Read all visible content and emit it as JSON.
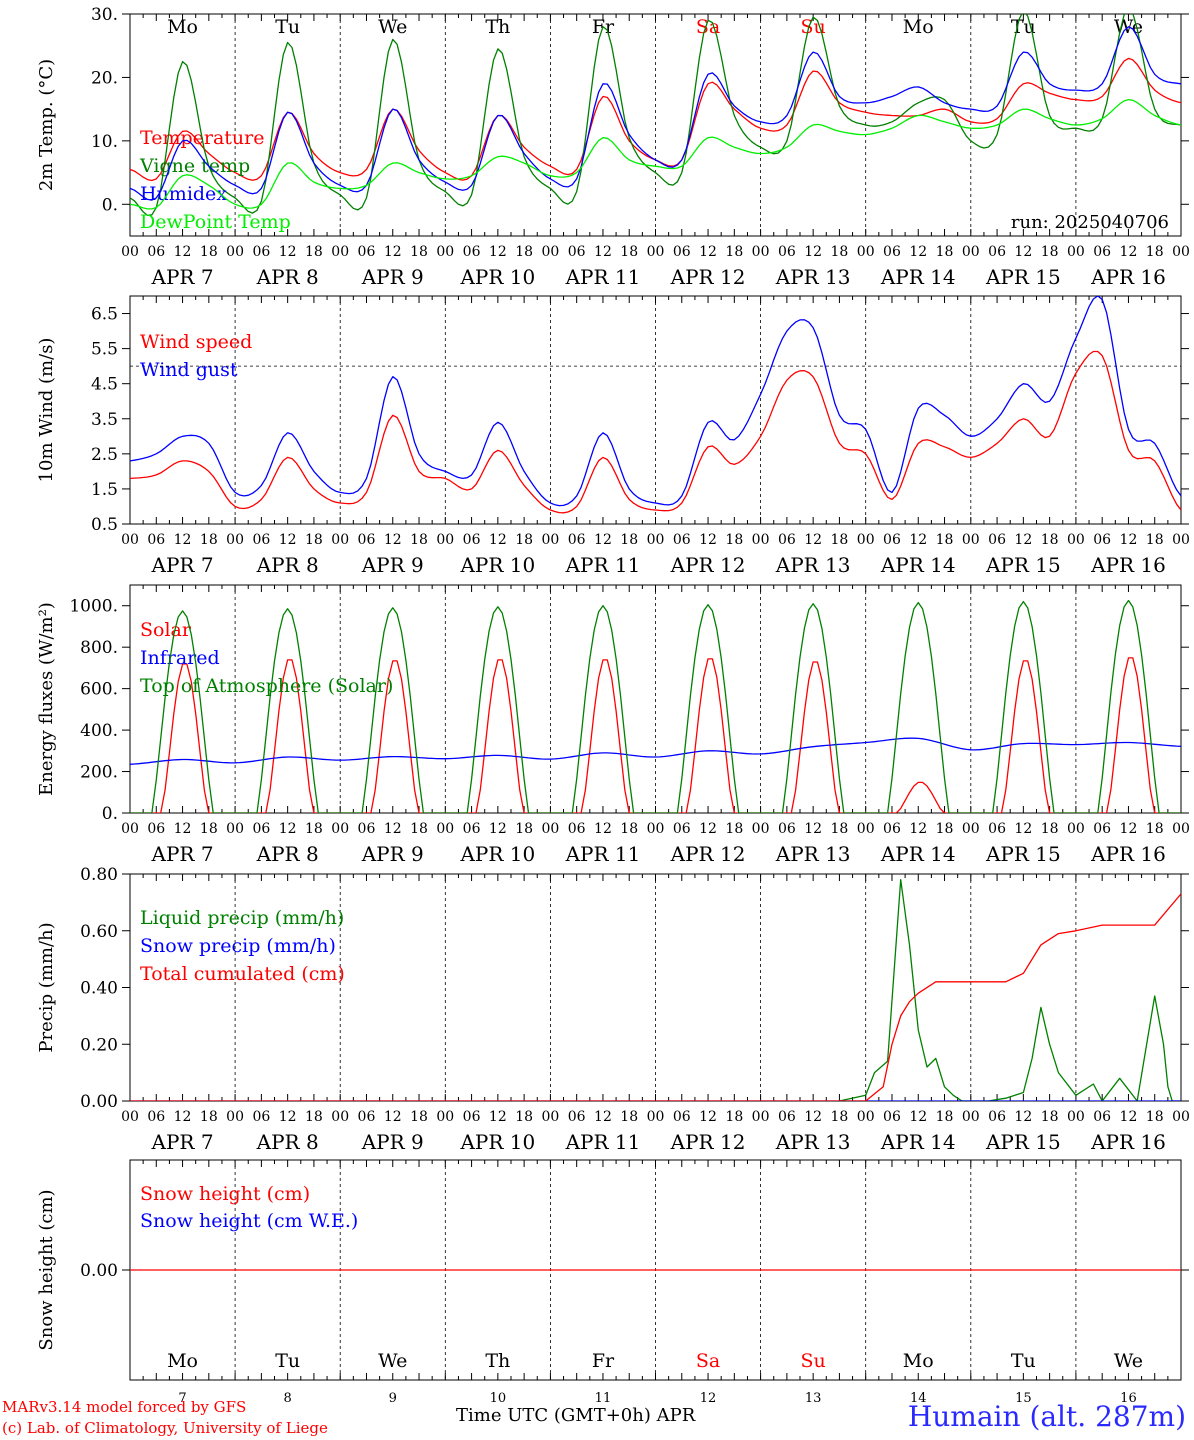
{
  "colors": {
    "red": "#ff0000",
    "blue": "#0000ff",
    "dark_green": "#008000",
    "light_green": "#00ee00",
    "axis": "#000000"
  },
  "footer": {
    "credit_line1": "MARv3.14 model forced by GFS",
    "credit_line2": "(c) Lab. of Climatology, University of Liege",
    "x_axis_title": "Time UTC (GMT+0h) APR",
    "location": "Humain (alt. 287m)"
  },
  "days": {
    "labels": [
      "APR  7",
      "APR  8",
      "APR  9",
      "APR 10",
      "APR 11",
      "APR 12",
      "APR 13",
      "APR 14",
      "APR 15",
      "APR 16"
    ],
    "weekdays": [
      {
        "name": "Mo",
        "color": "#000000"
      },
      {
        "name": "Tu",
        "color": "#000000"
      },
      {
        "name": "We",
        "color": "#000000"
      },
      {
        "name": "Th",
        "color": "#000000"
      },
      {
        "name": "Fr",
        "color": "#000000"
      },
      {
        "name": "Sa",
        "color": "#ff0000"
      },
      {
        "name": "Su",
        "color": "#ff0000"
      },
      {
        "name": "Mo",
        "color": "#000000"
      },
      {
        "name": "Tu",
        "color": "#000000"
      },
      {
        "name": "We",
        "color": "#000000"
      }
    ],
    "day_numbers": [
      "7",
      "8",
      "9",
      "10",
      "11",
      "12",
      "13",
      "14",
      "15",
      "16"
    ],
    "hour_ticks": [
      "00",
      "06",
      "12",
      "18"
    ],
    "final_tick": "00"
  },
  "chart_data": [
    {
      "type": "line",
      "ylabel": "2m Temp. (°C)",
      "ylim": [
        -5,
        30
      ],
      "yticks": [
        "0.",
        "10.",
        "20.",
        "30."
      ],
      "ytick_values": [
        0,
        10,
        20,
        30
      ],
      "annotation": "run: 2025040706",
      "show_weekdays": true,
      "x": [
        0,
        6,
        12,
        18,
        24,
        30,
        36,
        42,
        48,
        54,
        60,
        66,
        72,
        78,
        84,
        90,
        96,
        102,
        108,
        114,
        120,
        126,
        132,
        138,
        144,
        150,
        156,
        162,
        168,
        174,
        180,
        186,
        192,
        198,
        204,
        210,
        216,
        222,
        228,
        234,
        240
      ],
      "series": [
        {
          "name": "Temperature",
          "color": "#ff0000",
          "values": [
            5.5,
            4.0,
            11.5,
            8.0,
            5.0,
            4.5,
            14.5,
            8.0,
            5.0,
            5.5,
            15.0,
            8.5,
            5.0,
            4.5,
            14.0,
            9.0,
            6.0,
            5.5,
            17.0,
            10.0,
            7.0,
            7.0,
            19.0,
            15.0,
            12.0,
            12.5,
            21.0,
            16.0,
            14.5,
            14.0,
            14.0,
            15.0,
            13.0,
            13.5,
            19.0,
            17.5,
            16.5,
            17.0,
            23.0,
            18.0,
            16.0
          ]
        },
        {
          "name": "Vigne temp",
          "color": "#008000",
          "values": [
            1.0,
            -0.5,
            22.5,
            6.0,
            1.0,
            0.5,
            25.5,
            6.5,
            1.5,
            1.0,
            26.0,
            7.0,
            2.0,
            1.5,
            24.5,
            7.5,
            2.5,
            2.0,
            28.0,
            10.5,
            5.0,
            5.0,
            29.0,
            14.0,
            9.0,
            10.0,
            29.5,
            15.5,
            12.5,
            13.0,
            16.0,
            16.5,
            10.0,
            11.0,
            30.5,
            14.0,
            12.0,
            13.5,
            31.0,
            15.0,
            12.5
          ]
        },
        {
          "name": "Humidex",
          "color": "#0000ff",
          "values": [
            2.5,
            1.0,
            10.0,
            6.0,
            3.0,
            2.5,
            14.5,
            6.5,
            3.0,
            3.0,
            15.0,
            7.0,
            3.5,
            3.0,
            14.0,
            8.0,
            4.0,
            4.0,
            19.0,
            11.0,
            7.0,
            7.0,
            20.5,
            15.5,
            13.0,
            14.0,
            24.0,
            17.0,
            16.0,
            17.0,
            18.5,
            16.0,
            15.0,
            15.5,
            24.0,
            19.0,
            18.0,
            19.0,
            28.0,
            20.5,
            19.0
          ]
        },
        {
          "name": "DewPoint Temp",
          "color": "#00ee00",
          "values": [
            0.0,
            -0.5,
            4.5,
            3.0,
            0.0,
            0.0,
            6.5,
            3.5,
            2.5,
            3.0,
            6.5,
            5.0,
            4.0,
            4.5,
            7.5,
            6.5,
            4.5,
            5.0,
            10.5,
            7.0,
            6.0,
            6.0,
            10.5,
            9.0,
            8.0,
            9.0,
            12.5,
            11.5,
            11.0,
            12.0,
            14.0,
            13.0,
            12.0,
            12.5,
            15.0,
            13.5,
            12.5,
            13.5,
            16.5,
            14.0,
            12.5
          ]
        }
      ]
    },
    {
      "type": "line",
      "ylabel": "10m Wind (m/s)",
      "ylim": [
        0.5,
        7.0
      ],
      "yticks": [
        "0.5",
        "1.5",
        "2.5",
        "3.5",
        "4.5",
        "5.5",
        "6.5"
      ],
      "ytick_values": [
        0.5,
        1.5,
        2.5,
        3.5,
        4.5,
        5.5,
        6.5
      ],
      "reference_line": 5.0,
      "show_weekdays": false,
      "x": [
        0,
        6,
        12,
        18,
        24,
        30,
        36,
        42,
        48,
        54,
        60,
        66,
        72,
        78,
        84,
        90,
        96,
        102,
        108,
        114,
        120,
        126,
        132,
        138,
        144,
        150,
        156,
        162,
        168,
        174,
        180,
        186,
        192,
        198,
        204,
        210,
        216,
        222,
        228,
        234,
        240
      ],
      "series": [
        {
          "name": "Wind speed",
          "color": "#ff0000",
          "values": [
            1.8,
            1.9,
            2.3,
            2.0,
            1.0,
            1.2,
            2.4,
            1.5,
            1.1,
            1.4,
            3.6,
            2.0,
            1.8,
            1.5,
            2.6,
            1.6,
            0.9,
            1.0,
            2.4,
            1.2,
            0.9,
            1.1,
            2.7,
            2.2,
            3.0,
            4.6,
            4.7,
            2.8,
            2.5,
            1.2,
            2.8,
            2.7,
            2.4,
            2.8,
            3.5,
            3.0,
            4.8,
            5.3,
            2.6,
            2.3,
            0.9
          ]
        },
        {
          "name": "Wind gust",
          "color": "#0000ff",
          "values": [
            2.3,
            2.5,
            3.0,
            2.8,
            1.4,
            1.6,
            3.1,
            2.0,
            1.4,
            1.8,
            4.7,
            2.5,
            2.0,
            1.9,
            3.4,
            2.0,
            1.1,
            1.3,
            3.1,
            1.5,
            1.1,
            1.3,
            3.4,
            2.9,
            4.2,
            6.0,
            6.1,
            3.6,
            3.2,
            1.4,
            3.8,
            3.6,
            3.0,
            3.5,
            4.5,
            4.0,
            5.8,
            6.9,
            3.2,
            2.8,
            1.3
          ]
        }
      ]
    },
    {
      "type": "line",
      "ylabel": "Energy fluxes (W/m²)",
      "ylim": [
        0,
        1100
      ],
      "yticks": [
        "0.",
        "200.",
        "400.",
        "600.",
        "800.",
        "1000."
      ],
      "ytick_values": [
        0,
        200,
        400,
        600,
        800,
        1000
      ],
      "show_weekdays": false,
      "solar_peaks": [
        730,
        750,
        745,
        750,
        750,
        755,
        740,
        150,
        745,
        760
      ],
      "toa_peaks": [
        975,
        985,
        990,
        995,
        1000,
        1005,
        1010,
        1015,
        1020,
        1025
      ],
      "series": [
        {
          "name": "Solar",
          "color": "#ff0000"
        },
        {
          "name": "Infrared",
          "color": "#0000ff",
          "x": [
            0,
            12,
            24,
            36,
            48,
            60,
            72,
            84,
            96,
            108,
            120,
            132,
            144,
            156,
            168,
            180,
            192,
            204,
            216,
            228,
            240
          ],
          "values": [
            235,
            258,
            242,
            270,
            255,
            272,
            262,
            278,
            260,
            290,
            270,
            300,
            285,
            320,
            340,
            360,
            305,
            335,
            330,
            340,
            322
          ]
        },
        {
          "name": "Top of Atmosphere (Solar)",
          "color": "#008000"
        }
      ]
    },
    {
      "type": "line",
      "ylabel": "Precip (mm/h)",
      "ylim": [
        0,
        0.8
      ],
      "yticks": [
        "0.00",
        "0.20",
        "0.40",
        "0.60",
        "0.80"
      ],
      "ytick_values": [
        0.0,
        0.2,
        0.4,
        0.6,
        0.8
      ],
      "show_weekdays": false,
      "series": [
        {
          "name": "Liquid precip (mm/h)",
          "color": "#008000",
          "x": [
            162,
            168,
            170,
            173,
            176,
            178,
            180,
            182,
            184,
            186,
            188,
            190,
            196,
            200,
            204,
            206,
            208,
            210,
            212,
            216,
            220,
            222,
            226,
            230,
            234,
            236,
            237,
            238,
            240
          ],
          "values": [
            0,
            0.02,
            0.1,
            0.14,
            0.78,
            0.55,
            0.25,
            0.12,
            0.15,
            0.05,
            0.02,
            0,
            0,
            0.01,
            0.03,
            0.15,
            0.33,
            0.2,
            0.1,
            0.02,
            0.06,
            0,
            0.08,
            0,
            0.37,
            0.2,
            0.05,
            0,
            0
          ]
        },
        {
          "name": "Snow precip (mm/h)",
          "color": "#0000ff",
          "x": [
            0,
            240
          ],
          "values": [
            0,
            0
          ]
        },
        {
          "name": "Total cumulated (cm)",
          "color": "#ff0000",
          "x": [
            0,
            168,
            172,
            174,
            176,
            178,
            180,
            184,
            188,
            192,
            200,
            204,
            208,
            212,
            216,
            222,
            228,
            234,
            240
          ],
          "values": [
            0,
            0,
            0.05,
            0.2,
            0.3,
            0.35,
            0.38,
            0.42,
            0.42,
            0.42,
            0.42,
            0.45,
            0.55,
            0.59,
            0.6,
            0.62,
            0.62,
            0.62,
            0.73
          ]
        }
      ]
    },
    {
      "type": "line",
      "ylabel": "Snow height (cm)",
      "ylim": [
        -0.5,
        0.5
      ],
      "yticks": [
        "0.00"
      ],
      "ytick_values": [
        0.0
      ],
      "show_weekdays": "bottom",
      "series": [
        {
          "name": "Snow height (cm)",
          "color": "#ff0000",
          "x": [
            0,
            240
          ],
          "values": [
            0,
            0
          ]
        },
        {
          "name": "Snow height (cm W.E.)",
          "color": "#0000ff"
        }
      ]
    }
  ]
}
